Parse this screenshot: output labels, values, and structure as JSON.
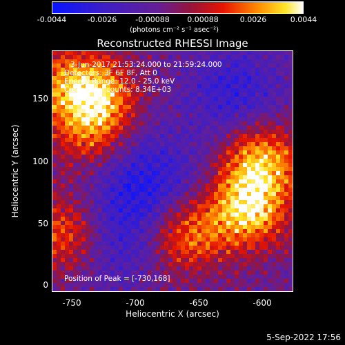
{
  "colorbar": {
    "ticks": [
      "-0.0044",
      "-0.0026",
      "-0.00088",
      "0.00088",
      "0.0026",
      "0.0044"
    ],
    "units": "(photons cm⁻² s⁻¹ asec⁻²)"
  },
  "title": "Reconstructed RHESSI Image",
  "annotations": {
    "time_range": "3-Jun-2017 21:53:24.000 to 21:59:24.000",
    "detectors": "Detectors: 3F 6F 8F, Att 0",
    "energy": "Energy Range: 12.0 - 25.0 keV",
    "method": "Clean    Total counts: 8.34E+03",
    "peak": "Position of Peak = [-730,168]"
  },
  "axes": {
    "xlabel": "Heliocentric X (arcsec)",
    "ylabel": "Heliocentric Y (arcsec)",
    "xticks": [
      "-750",
      "-700",
      "-650",
      "-600"
    ],
    "yticks": [
      "0",
      "50",
      "100",
      "150"
    ]
  },
  "timestamp": "5-Sep-2022 17:56",
  "chart_data": {
    "type": "heatmap",
    "title": "Reconstructed RHESSI Image",
    "xlabel": "Heliocentric X (arcsec)",
    "ylabel": "Heliocentric Y (arcsec)",
    "xlim": [
      -765,
      -575
    ],
    "ylim": [
      -5,
      185
    ],
    "colorbar_range": [
      -0.0044,
      0.0044
    ],
    "colormap": "blue-purple-red-yellow-white",
    "peak_position": [
      -730,
      168
    ],
    "sources": [
      {
        "x": -610,
        "y": 60,
        "level": 1.0
      },
      {
        "x": -600,
        "y": 100,
        "level": 0.9
      },
      {
        "x": -660,
        "y": 40,
        "level": 0.75
      },
      {
        "x": -730,
        "y": 150,
        "level": 0.85
      },
      {
        "x": -755,
        "y": 40,
        "level": 0.7
      },
      {
        "x": -735,
        "y": 120,
        "level": 0.5
      },
      {
        "x": -760,
        "y": 160,
        "level": 0.5
      }
    ],
    "negative_regions": [
      {
        "x": -690,
        "y": 80,
        "level": -0.6
      },
      {
        "x": -620,
        "y": 150,
        "level": -0.5
      },
      {
        "x": -715,
        "y": 35,
        "level": -0.4
      }
    ]
  }
}
